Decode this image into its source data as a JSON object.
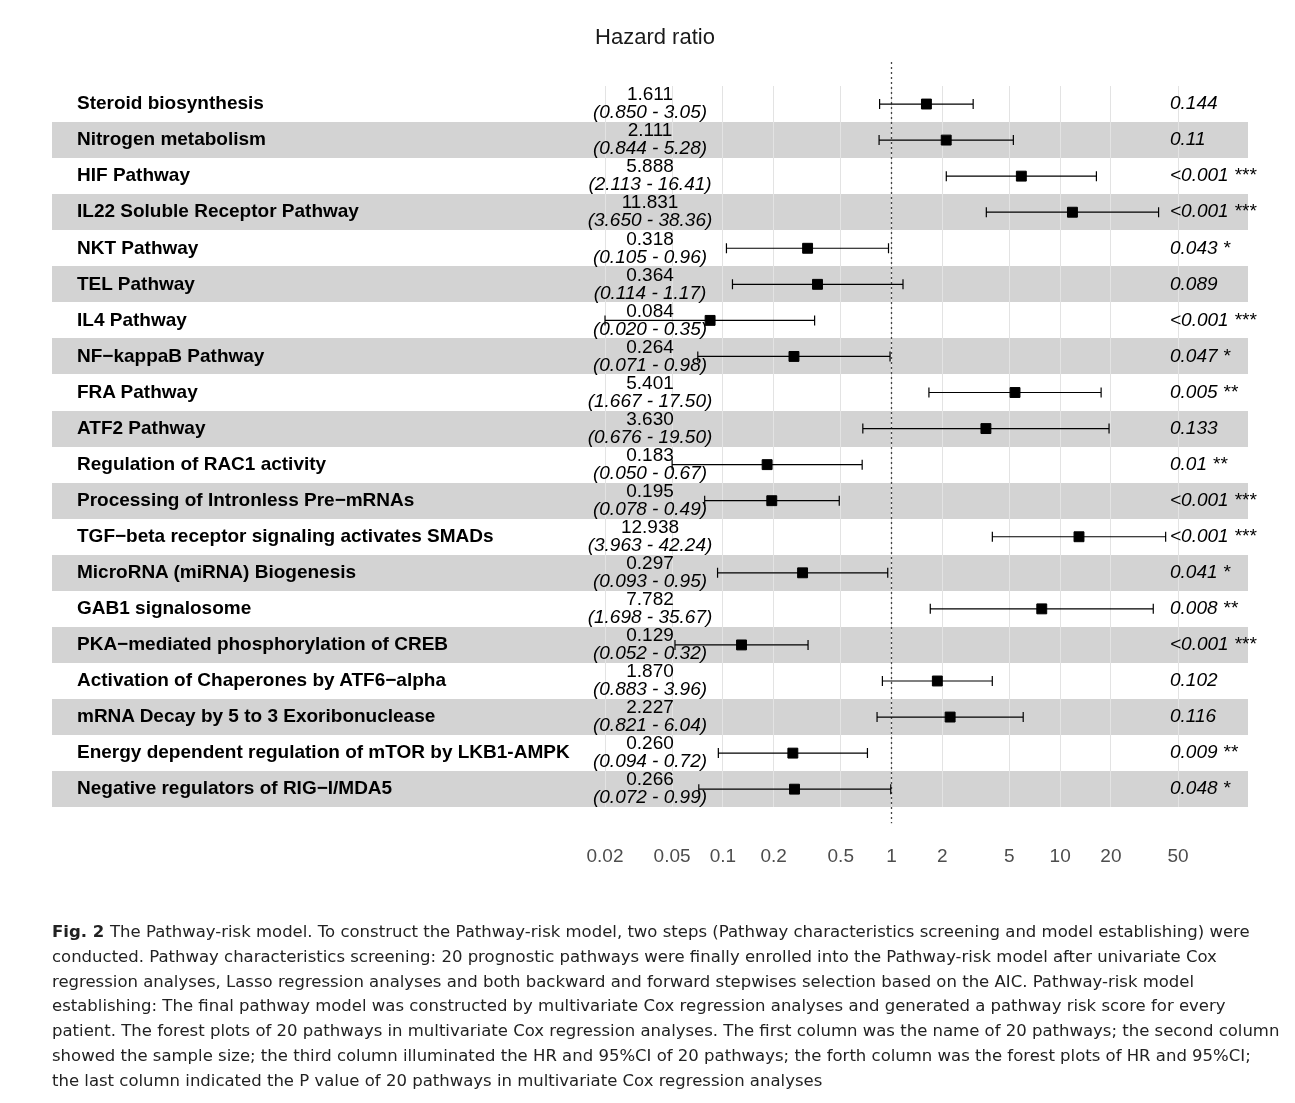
{
  "chart_data": {
    "type": "scatter",
    "orientation": "horizontal",
    "title": "Hazard ratio",
    "categories": [
      "Steroid biosynthesis",
      "Nitrogen metabolism",
      "HIF Pathway",
      "IL22 Soluble Receptor Pathway",
      "NKT Pathway",
      "TEL Pathway",
      "IL4 Pathway",
      "NF−kappaB Pathway",
      "FRA Pathway",
      "ATF2 Pathway",
      "Regulation of RAC1 activity",
      "Processing of Intronless Pre−mRNAs",
      "TGF−beta receptor signaling activates SMADs",
      "MicroRNA (miRNA) Biogenesis",
      "GAB1 signalosome",
      "PKA−mediated phosphorylation of CREB",
      "Activation of Chaperones by ATF6−alpha",
      "mRNA Decay by 5 to 3 Exoribonuclease",
      "Energy dependent regulation of mTOR by LKB1-AMPK",
      "Negative regulators of RIG−I/MDA5"
    ],
    "values": [
      1.611,
      2.111,
      5.888,
      11.831,
      0.318,
      0.364,
      0.084,
      0.264,
      5.401,
      3.63,
      0.183,
      0.195,
      12.938,
      0.297,
      7.782,
      0.129,
      1.87,
      2.227,
      0.26,
      0.266
    ],
    "errors": [
      [
        0.85,
        3.05
      ],
      [
        0.844,
        5.28
      ],
      [
        2.113,
        16.41
      ],
      [
        3.65,
        38.36
      ],
      [
        0.105,
        0.96
      ],
      [
        0.114,
        1.17
      ],
      [
        0.02,
        0.35
      ],
      [
        0.071,
        0.98
      ],
      [
        1.667,
        17.5
      ],
      [
        0.676,
        19.5
      ],
      [
        0.05,
        0.67
      ],
      [
        0.078,
        0.49
      ],
      [
        3.963,
        42.24
      ],
      [
        0.093,
        0.95
      ],
      [
        1.698,
        35.67
      ],
      [
        0.052,
        0.32
      ],
      [
        0.883,
        3.96
      ],
      [
        0.821,
        6.04
      ],
      [
        0.094,
        0.72
      ],
      [
        0.072,
        0.99
      ]
    ],
    "color": "#000000",
    "marker": "square",
    "log": "x",
    "grid": "x",
    "xlim": [
      0.02,
      50
    ],
    "xticks": [
      0.02,
      0.05,
      0.1,
      0.2,
      0.5,
      1,
      2,
      5,
      10,
      20,
      50
    ],
    "ref_lines": [
      {
        "axis": "x",
        "value": 1,
        "line_style": "dotted"
      }
    ],
    "annotations": [
      "1.611\n(0.850 - 3.05)",
      "2.111\n(0.844 - 5.28)",
      "5.888\n(2.113 - 16.41)",
      "11.831\n(3.650 - 38.36)",
      "0.318\n(0.105 - 0.96)",
      "0.364\n(0.114 - 1.17)",
      "0.084\n(0.020 - 0.35)",
      "0.264\n(0.071 - 0.98)",
      "5.401\n(1.667 - 17.50)",
      "3.630\n(0.676 - 19.50)",
      "0.183\n(0.050 - 0.67)",
      "0.195\n(0.078 - 0.49)",
      "12.938\n(3.963 - 42.24)",
      "0.297\n(0.093 - 0.95)",
      "7.782\n(1.698 - 35.67)",
      "0.129\n(0.052 - 0.32)",
      "1.870\n(0.883 - 3.96)",
      "2.227\n(0.821 - 6.04)",
      "0.260\n(0.094 - 0.72)",
      "0.266\n(0.072 - 0.99)",
      "0.144",
      "0.11",
      "<0.001 ***",
      "<0.001 ***",
      "0.043 *",
      "0.089",
      "<0.001 ***",
      "0.047 *",
      "0.005 **",
      "0.133",
      "0.01 **",
      "<0.001 ***",
      "<0.001 ***",
      "0.041 *",
      "0.008 **",
      "<0.001 ***",
      "0.102",
      "0.116",
      "0.009 **",
      "0.048 *",
      "Fig. 2",
      "The Pathway-risk model. To construct the Pathway-risk model, two steps (Pathway characteristics screening and model establishing) were conducted. Pathway characteristics screening: 20 prognostic pathways were finally enrolled into the Pathway-risk model after univariate Cox regression analyses, Lasso regression analyses and both backward and forward stepwises selection based on the AIC. Pathway-risk model establishing: The final pathway model was constructed by multivariate Cox regression analyses and generated a pathway risk score for every patient. The forest plots of 20 pathways in multivariate Cox regression analyses. The first column was the name of 20 pathways; the second column showed the sample size; the third column illuminated the HR and 95%CI of 20 pathways; the forth column was the forest plots of HR and 95%CI; the last column indicated the P value of 20 pathways in multivariate Cox regression analyses"
    ]
  }
}
